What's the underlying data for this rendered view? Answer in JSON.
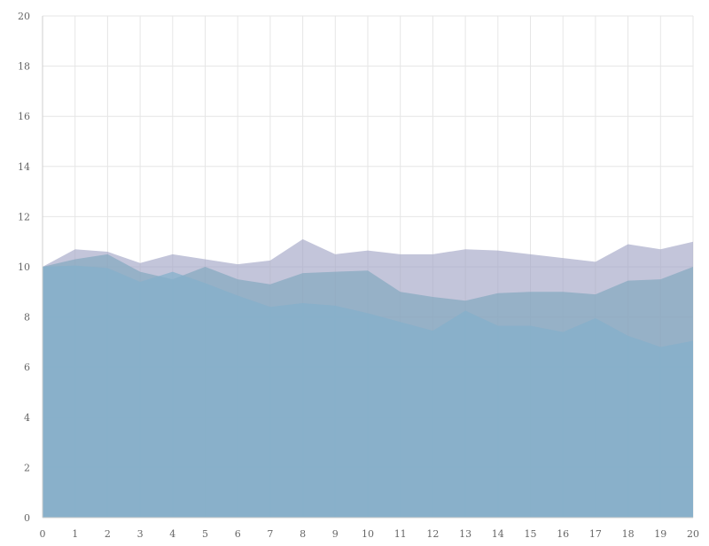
{
  "chart_data": {
    "type": "area",
    "title": "",
    "xlabel": "",
    "ylabel": "",
    "x": [
      0,
      1,
      2,
      3,
      4,
      5,
      6,
      7,
      8,
      9,
      10,
      11,
      12,
      13,
      14,
      15,
      16,
      17,
      18,
      19,
      20
    ],
    "xlim": [
      0,
      20
    ],
    "ylim": [
      0,
      20
    ],
    "y_ticks": [
      0,
      2,
      4,
      6,
      8,
      10,
      12,
      14,
      16,
      18,
      20
    ],
    "x_ticks": [
      0,
      1,
      2,
      3,
      4,
      5,
      6,
      7,
      8,
      9,
      10,
      11,
      12,
      13,
      14,
      15,
      16,
      17,
      18,
      19,
      20
    ],
    "grid": true,
    "legend": "none",
    "stacked": false,
    "series": [
      {
        "color": "#a3a6c6",
        "opacity": 0.65,
        "values": [
          10.0,
          10.7,
          10.6,
          10.15,
          10.5,
          10.3,
          10.1,
          10.25,
          11.1,
          10.5,
          10.65,
          10.5,
          10.5,
          10.7,
          10.65,
          10.5,
          10.35,
          10.2,
          10.9,
          10.7,
          11.0
        ]
      },
      {
        "color": "#7ea6bd",
        "opacity": 0.65,
        "values": [
          10.0,
          10.3,
          10.5,
          9.8,
          9.5,
          10.0,
          9.5,
          9.3,
          9.75,
          9.8,
          9.85,
          9.0,
          8.8,
          8.65,
          8.95,
          9.0,
          9.0,
          8.9,
          9.45,
          9.5,
          10.0
        ]
      },
      {
        "color": "#84b0cb",
        "opacity": 0.75,
        "values": [
          10.0,
          10.05,
          9.95,
          9.4,
          9.8,
          9.35,
          8.85,
          8.4,
          8.55,
          8.45,
          8.15,
          7.8,
          7.45,
          8.25,
          7.65,
          7.65,
          7.4,
          7.95,
          7.25,
          6.8,
          7.05
        ]
      }
    ]
  }
}
